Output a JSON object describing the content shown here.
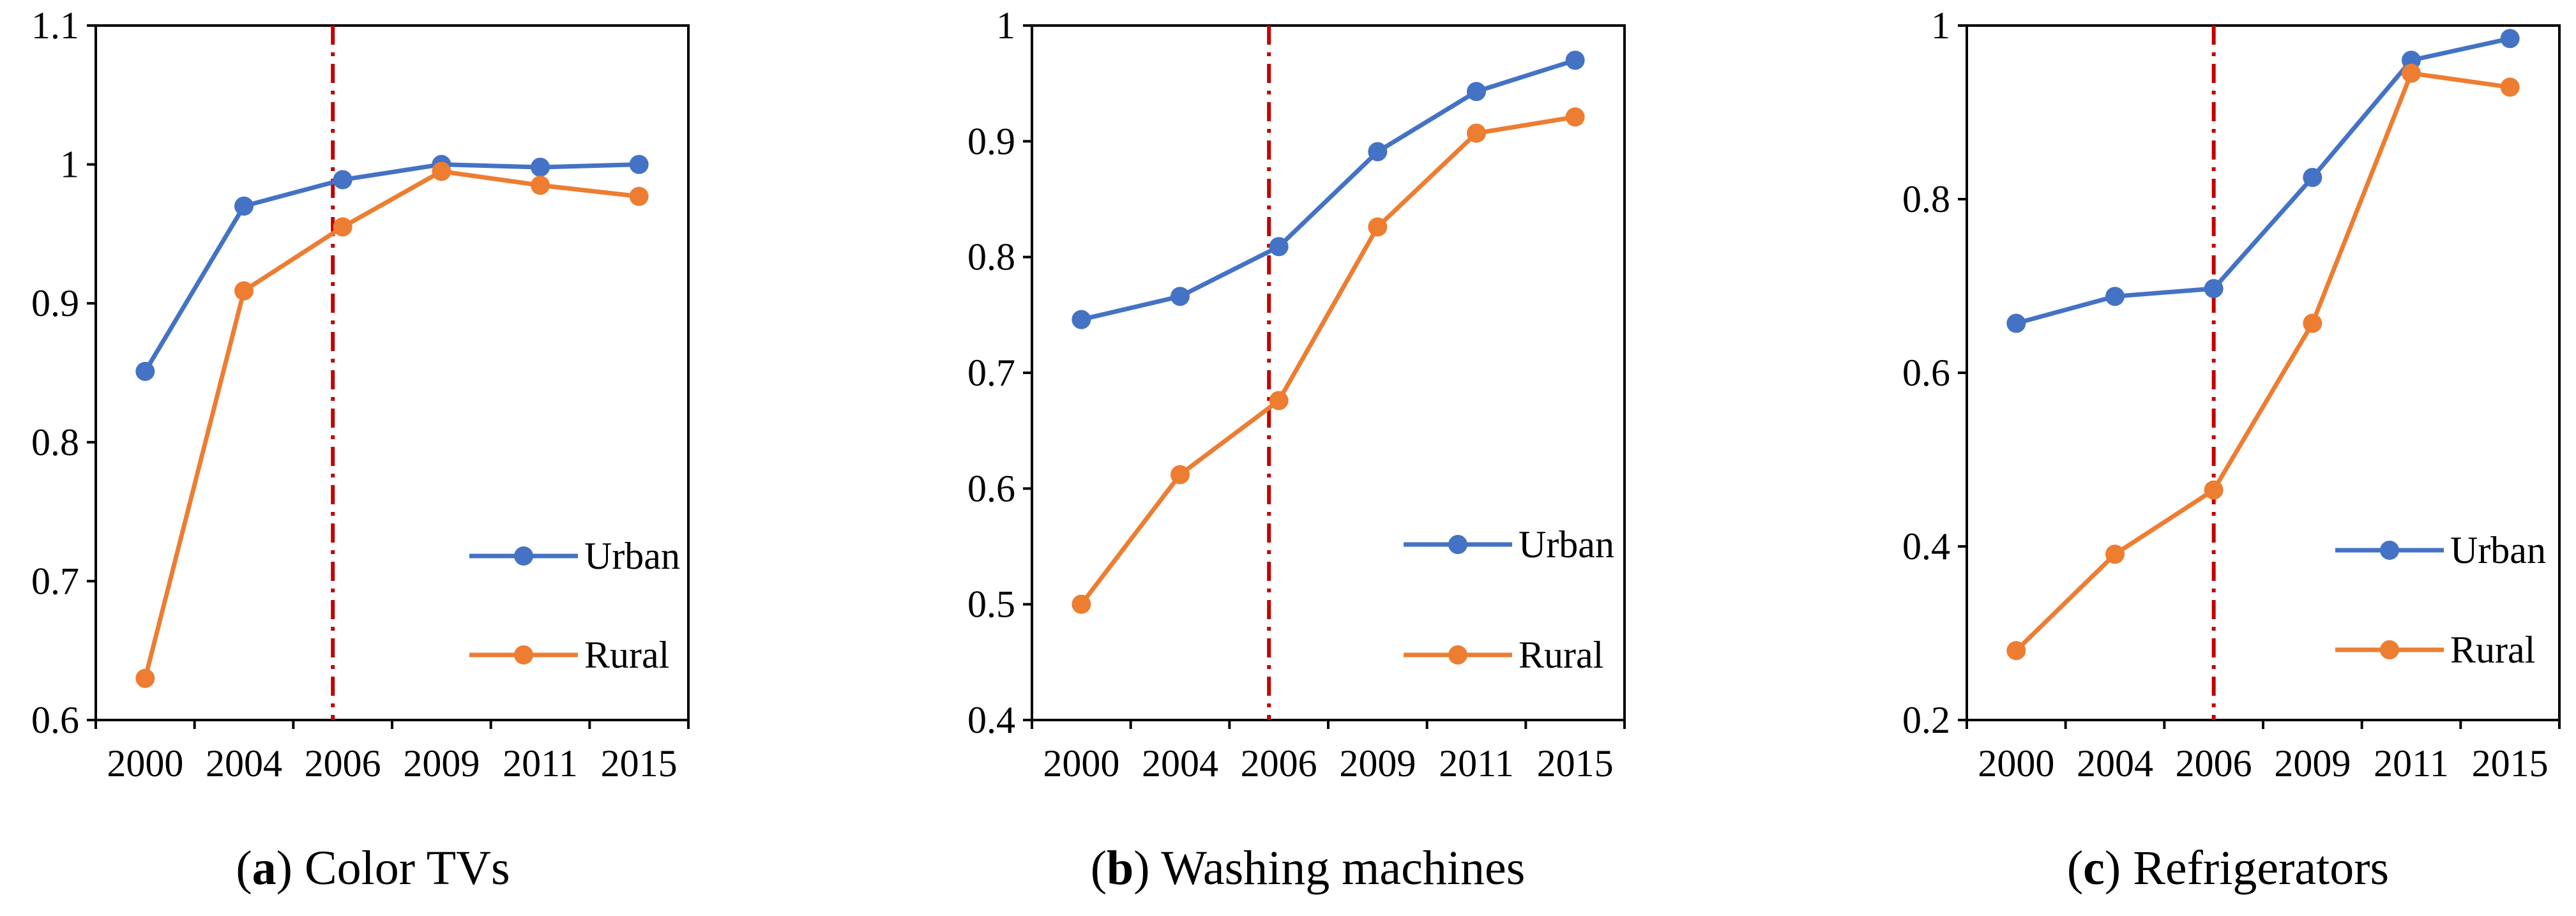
{
  "colors": {
    "urban": "#4472C4",
    "rural": "#ED7D31",
    "marker_line": "#C00000",
    "axis": "#000000"
  },
  "chart_data": [
    {
      "type": "line",
      "caption_letter": "a",
      "caption_open": "(",
      "caption_close": ")",
      "caption_text": " Color TVs",
      "categories": [
        "2000",
        "2004",
        "2006",
        "2009",
        "2011",
        "2015"
      ],
      "ylim": [
        0.6,
        1.1
      ],
      "yticks": [
        0.6,
        0.7,
        0.8,
        0.9,
        1,
        1.1
      ],
      "ytick_labels": [
        "0.6",
        "0.7",
        "0.8",
        "0.9",
        "1",
        "1.1"
      ],
      "reference_line_x": 1.9,
      "series": [
        {
          "name": "Urban",
          "color_key": "urban",
          "values": [
            0.851,
            0.97,
            0.989,
            1.0,
            0.998,
            1.0
          ]
        },
        {
          "name": "Rural",
          "color_key": "rural",
          "values": [
            0.63,
            0.909,
            0.955,
            0.995,
            0.985,
            0.977
          ]
        }
      ],
      "legend": [
        "Urban",
        "Rural"
      ]
    },
    {
      "type": "line",
      "caption_letter": "b",
      "caption_open": "(",
      "caption_close": ")",
      "caption_text": " Washing machines",
      "categories": [
        "2000",
        "2004",
        "2006",
        "2009",
        "2011",
        "2015"
      ],
      "ylim": [
        0.4,
        1.0
      ],
      "yticks": [
        0.4,
        0.5,
        0.6,
        0.7,
        0.8,
        0.9,
        1
      ],
      "ytick_labels": [
        "0.4",
        "0.5",
        "0.6",
        "0.7",
        "0.8",
        "0.9",
        "1"
      ],
      "reference_line_x": 1.9,
      "series": [
        {
          "name": "Urban",
          "color_key": "urban",
          "values": [
            0.746,
            0.766,
            0.809,
            0.891,
            0.943,
            0.97
          ]
        },
        {
          "name": "Rural",
          "color_key": "rural",
          "values": [
            0.5,
            0.612,
            0.676,
            0.826,
            0.907,
            0.921
          ]
        }
      ],
      "legend": [
        "Urban",
        "Rural"
      ]
    },
    {
      "type": "line",
      "caption_letter": "c",
      "caption_open": "(",
      "caption_close": ")",
      "caption_text": " Refrigerators",
      "categories": [
        "2000",
        "2004",
        "2006",
        "2009",
        "2011",
        "2015"
      ],
      "ylim": [
        0.2,
        1.0
      ],
      "yticks": [
        0.2,
        0.4,
        0.6,
        0.8,
        1
      ],
      "ytick_labels": [
        "0.2",
        "0.4",
        "0.6",
        "0.8",
        "1"
      ],
      "reference_line_x": 2.0,
      "series": [
        {
          "name": "Urban",
          "color_key": "urban",
          "values": [
            0.657,
            0.688,
            0.697,
            0.825,
            0.96,
            0.985
          ]
        },
        {
          "name": "Rural",
          "color_key": "rural",
          "values": [
            0.28,
            0.391,
            0.465,
            0.657,
            0.945,
            0.929
          ]
        }
      ],
      "legend": [
        "Urban",
        "Rural"
      ]
    }
  ]
}
